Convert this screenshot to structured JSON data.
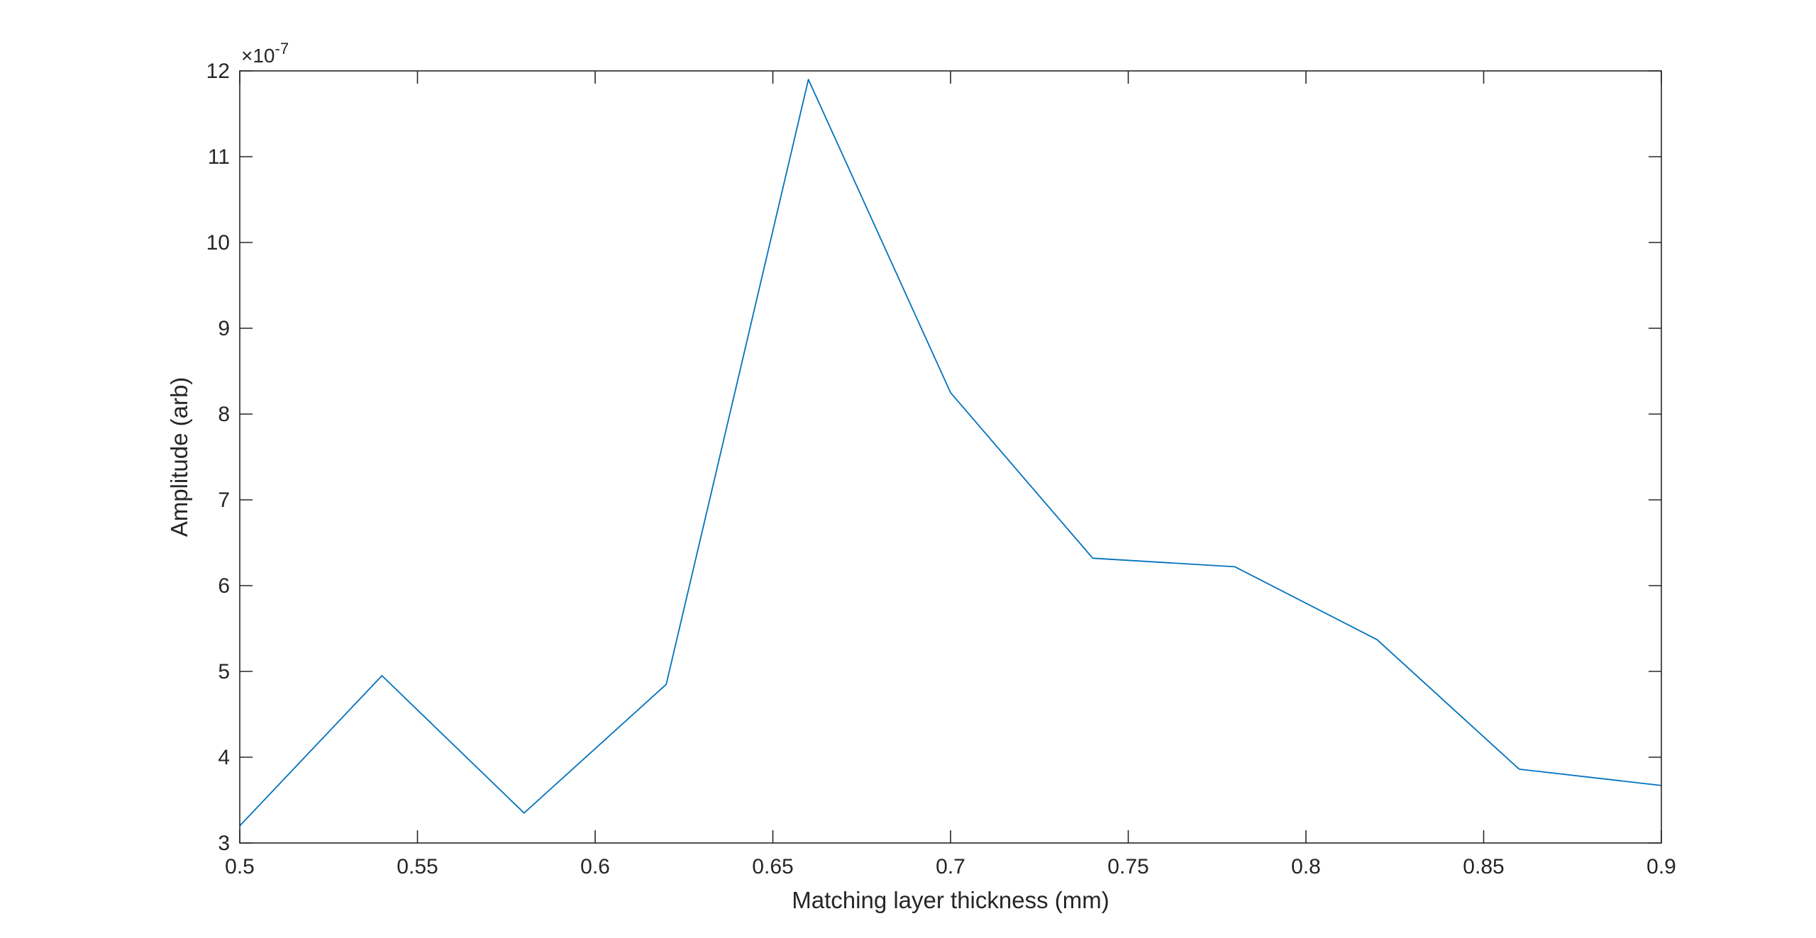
{
  "chart_data": {
    "type": "line",
    "title": "",
    "xlabel": "Matching layer thickness (mm)",
    "ylabel": "Amplitude (arb)",
    "y_exponent_label": {
      "base": "×10",
      "exponent": "-7"
    },
    "xlim": [
      0.5,
      0.9
    ],
    "ylim": [
      3,
      12
    ],
    "x_ticks": [
      0.5,
      0.55,
      0.6,
      0.65,
      0.7,
      0.75,
      0.8,
      0.85,
      0.9
    ],
    "x_tick_labels": [
      "0.5",
      "0.55",
      "0.6",
      "0.65",
      "0.7",
      "0.75",
      "0.8",
      "0.85",
      "0.9"
    ],
    "y_ticks": [
      3,
      4,
      5,
      6,
      7,
      8,
      9,
      10,
      11,
      12
    ],
    "y_tick_labels": [
      "3",
      "4",
      "5",
      "6",
      "7",
      "8",
      "9",
      "10",
      "11",
      "12"
    ],
    "grid": false,
    "series": [
      {
        "color": "#0072bd",
        "x": [
          0.5,
          0.54,
          0.58,
          0.62,
          0.66,
          0.7,
          0.74,
          0.78,
          0.82,
          0.86,
          0.9
        ],
        "y": [
          3.2,
          4.95,
          3.35,
          4.85,
          11.9,
          8.25,
          6.32,
          6.22,
          5.37,
          3.86,
          3.67
        ]
      }
    ]
  }
}
